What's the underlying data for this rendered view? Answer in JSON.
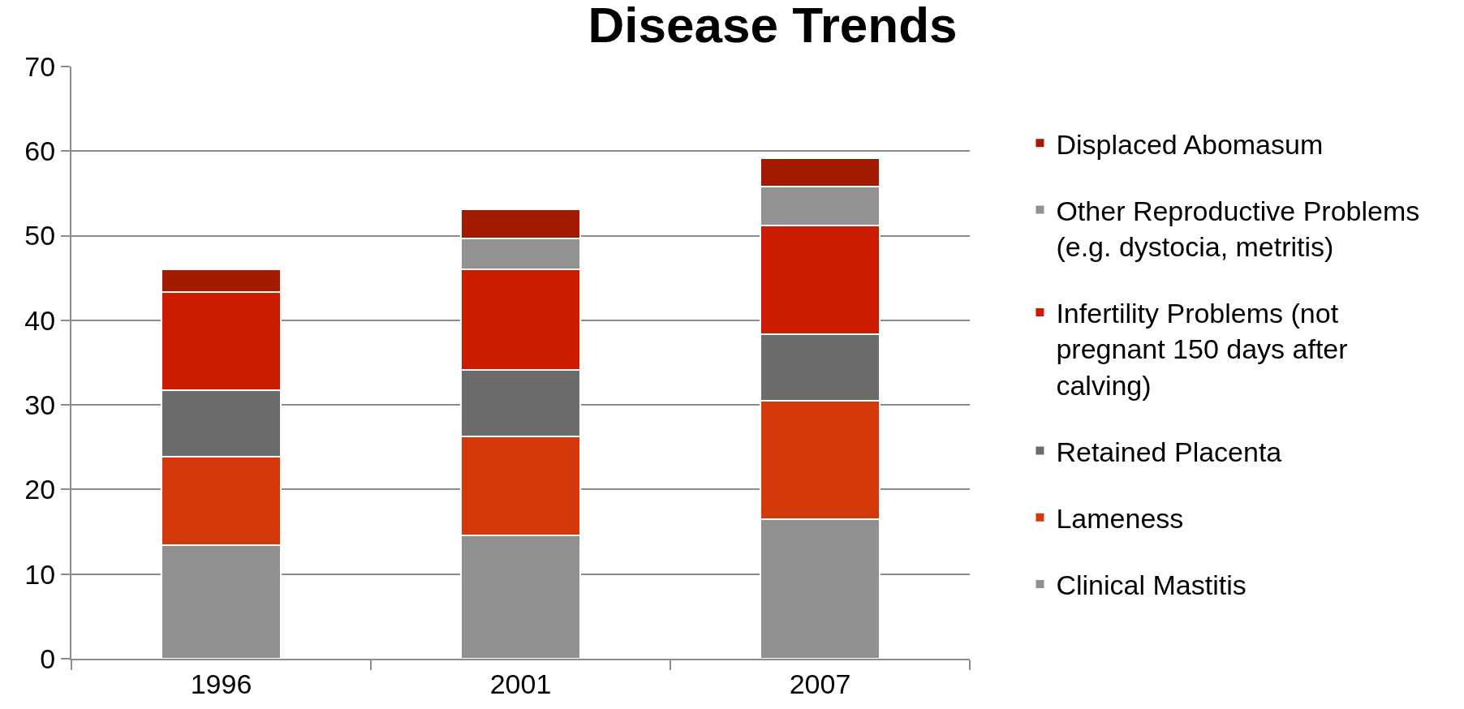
{
  "chart_data": {
    "type": "bar",
    "title": "Disease Trends",
    "categories": [
      "1996",
      "2001",
      "2007"
    ],
    "stacked": true,
    "series": [
      {
        "name": "Clinical Mastitis",
        "color": "#919191",
        "values": [
          13.4,
          14.6,
          16.5
        ]
      },
      {
        "name": "Lameness",
        "color": "#d5380a",
        "values": [
          10.5,
          11.7,
          14.0
        ]
      },
      {
        "name": "Retained Placenta",
        "color": "#6b6b6b",
        "values": [
          7.8,
          7.8,
          7.9
        ]
      },
      {
        "name": "Infertility Problems (not pregnant 150 days after calving)",
        "color": "#cc1c00",
        "values": [
          11.6,
          11.9,
          12.8
        ]
      },
      {
        "name": "Other Reproductive Problems (e.g. dystocia, metritis)",
        "color": "#929292",
        "values": [
          null,
          3.7,
          4.6
        ]
      },
      {
        "name": "Displaced Abomasum",
        "color": "#a21a00",
        "values": [
          2.7,
          3.4,
          3.4
        ]
      }
    ],
    "ylim": [
      0,
      70
    ],
    "yticks": [
      0,
      10,
      20,
      30,
      40,
      50,
      60,
      70
    ],
    "grid": "y",
    "legend": "right"
  }
}
